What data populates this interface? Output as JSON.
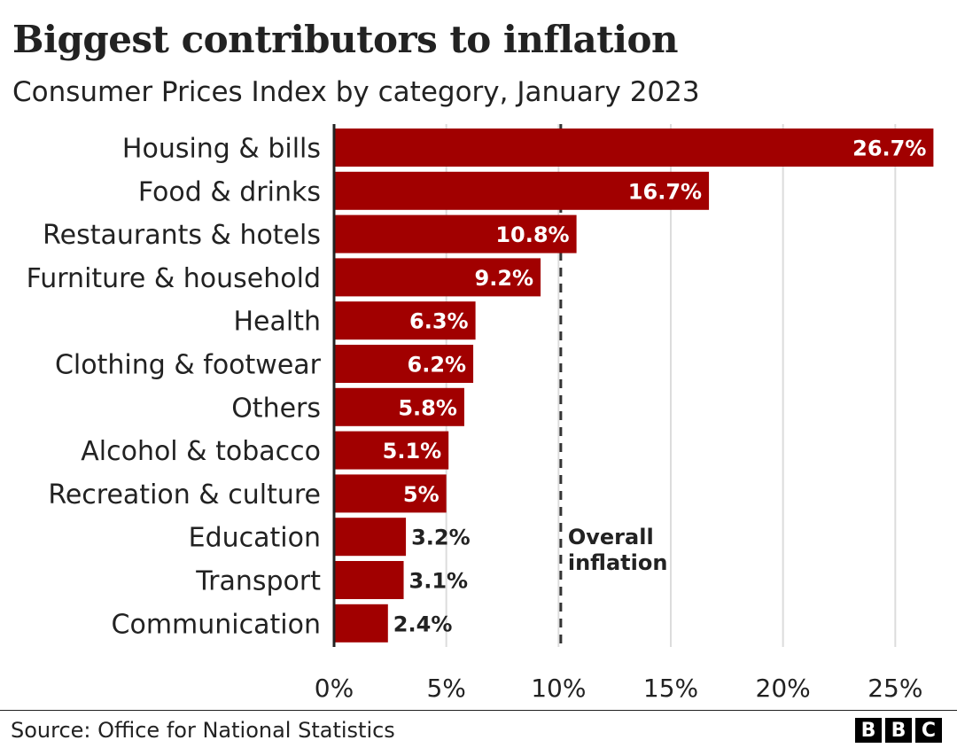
{
  "chart_data": {
    "type": "bar",
    "orientation": "horizontal",
    "title": "Biggest contributors to inflation",
    "subtitle": "Consumer Prices Index by category, January 2023",
    "categories": [
      "Housing & bills",
      "Food & drinks",
      "Restaurants & hotels",
      "Furniture & household",
      "Health",
      "Clothing & footwear",
      "Others",
      "Alcohol & tobacco",
      "Recreation & culture",
      "Education",
      "Transport",
      "Communication"
    ],
    "values": [
      26.7,
      16.7,
      10.8,
      9.2,
      6.3,
      6.2,
      5.8,
      5.1,
      5,
      3.2,
      3.1,
      2.4
    ],
    "value_labels": [
      "26.7%",
      "16.7%",
      "10.8%",
      "9.2%",
      "6.3%",
      "6.2%",
      "5.8%",
      "5.1%",
      "5%",
      "3.2%",
      "3.1%",
      "2.4%"
    ],
    "xlim": [
      0,
      27
    ],
    "xticks": [
      0,
      5,
      10,
      15,
      20,
      25
    ],
    "xtick_labels": [
      "0%",
      "5%",
      "10%",
      "15%",
      "20%",
      "25%"
    ],
    "grid": true,
    "bar_color": "#a10000",
    "reference_line": {
      "value": 10.1,
      "label_lines": [
        "Overall",
        "inflation"
      ]
    }
  },
  "footer": {
    "source": "Source: Office for National Statistics",
    "logo_letters": [
      "B",
      "B",
      "C"
    ]
  }
}
